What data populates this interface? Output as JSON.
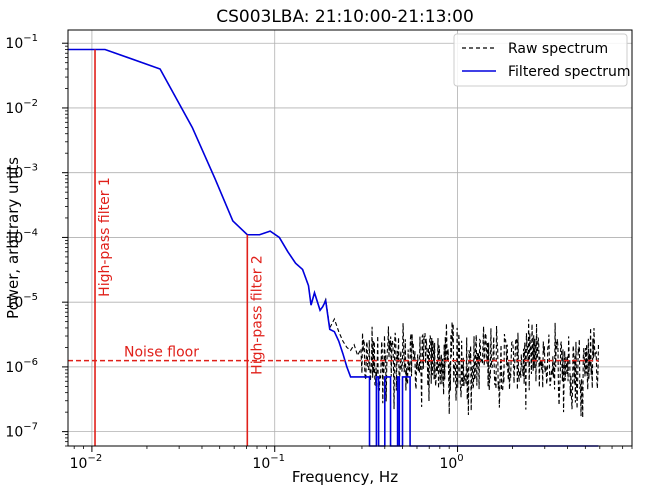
{
  "chart_data": {
    "type": "line",
    "title": "CS003LBA: 21:10:00-21:13:00",
    "xlabel": "Frequency, Hz",
    "ylabel": "Power, arbitrary units",
    "xscale": "log",
    "yscale": "log",
    "xlim": [
      0.0074,
      9.0
    ],
    "ylim": [
      6e-08,
      0.16
    ],
    "grid": true,
    "x_ticks": [
      {
        "value": 0.01,
        "base": "10",
        "exp": "−2"
      },
      {
        "value": 0.1,
        "base": "10",
        "exp": "−1"
      },
      {
        "value": 1,
        "base": "10",
        "exp": "0"
      }
    ],
    "y_ticks": [
      {
        "value": 1e-07,
        "base": "10",
        "exp": "−7"
      },
      {
        "value": 1e-06,
        "base": "10",
        "exp": "−6"
      },
      {
        "value": 1e-05,
        "base": "10",
        "exp": "−5"
      },
      {
        "value": 0.0001,
        "base": "10",
        "exp": "−4"
      },
      {
        "value": 0.001,
        "base": "10",
        "exp": "−3"
      },
      {
        "value": 0.01,
        "base": "10",
        "exp": "−2"
      },
      {
        "value": 0.1,
        "base": "10",
        "exp": "−1"
      }
    ],
    "legend_position": "top-right",
    "series": [
      {
        "name": "Raw spectrum",
        "color": "#000000",
        "style": "dashed",
        "noise_band": {
          "x_from": 0.3,
          "x_to": 5.9,
          "median": 1.2e-06,
          "low": 1.5e-07,
          "high": 5e-06
        },
        "x": [
          0.0074,
          0.0118,
          0.0236,
          0.0354,
          0.0472,
          0.059,
          0.0708,
          0.0826,
          0.0944,
          0.106,
          0.118,
          0.13,
          0.142,
          0.153,
          0.158,
          0.165,
          0.177,
          0.183,
          0.19,
          0.2,
          0.212,
          0.224,
          0.236,
          0.248,
          0.26,
          0.272,
          0.284,
          0.296
        ],
        "y": [
          0.08,
          0.08,
          0.04,
          0.005,
          0.0008,
          0.00018,
          0.00011,
          0.00011,
          0.000125,
          0.0001,
          6e-05,
          4e-05,
          3.2e-05,
          1.8e-05,
          9e-06,
          1.4e-05,
          7.5e-06,
          8.5e-06,
          1.1e-05,
          4e-06,
          5.5e-06,
          3.5e-06,
          2.5e-06,
          2e-06,
          1.8e-06,
          2.2e-06,
          1.5e-06,
          1.9e-06
        ]
      },
      {
        "name": "Filtered spectrum",
        "color": "#0000dd",
        "style": "solid",
        "x": [
          0.0074,
          0.0118,
          0.0236,
          0.0354,
          0.0472,
          0.059,
          0.0708,
          0.0826,
          0.0944,
          0.106,
          0.118,
          0.13,
          0.142,
          0.153,
          0.158,
          0.165,
          0.177,
          0.183,
          0.19,
          0.2,
          0.212,
          0.224,
          0.236,
          0.248,
          0.26,
          0.272,
          0.284,
          0.296,
          0.31,
          0.33,
          0.33,
          0.36,
          0.36,
          0.37,
          0.37,
          0.4,
          0.4,
          0.43,
          0.43,
          0.47,
          0.47,
          0.48,
          0.48,
          0.5,
          0.5,
          0.55,
          0.55,
          5.9
        ],
        "y": [
          0.08,
          0.08,
          0.04,
          0.005,
          0.0008,
          0.00018,
          0.00011,
          0.00011,
          0.000125,
          0.0001,
          6e-05,
          4e-05,
          3.2e-05,
          1.8e-05,
          9e-06,
          1.4e-05,
          7.5e-06,
          8.5e-06,
          1.05e-05,
          3.8e-06,
          3.5e-06,
          2.5e-06,
          1.6e-06,
          1e-06,
          7e-07,
          7e-07,
          7e-07,
          7e-07,
          7e-07,
          7e-07,
          6e-08,
          6e-08,
          7e-07,
          7e-07,
          6e-08,
          6e-08,
          7e-07,
          7e-07,
          6e-08,
          6e-08,
          7e-07,
          7e-07,
          6e-08,
          6e-08,
          7e-07,
          7e-07,
          6e-08,
          6e-08
        ]
      }
    ],
    "annotations": [
      {
        "type": "vline",
        "x": 0.0104,
        "label": "High-pass filter 1",
        "color": "#e0201a",
        "y_from": 6e-08,
        "y_to": 0.08
      },
      {
        "type": "vline",
        "x": 0.0708,
        "label": "High-pass filter 2",
        "color": "#e0201a",
        "y_from": 6e-08,
        "y_to": 0.00011
      },
      {
        "type": "hline",
        "y": 1.25e-06,
        "label": "Noise floor",
        "color": "#e0201a",
        "style": "dashed",
        "x_from": 0.0074,
        "x_to": 5.9
      }
    ]
  }
}
